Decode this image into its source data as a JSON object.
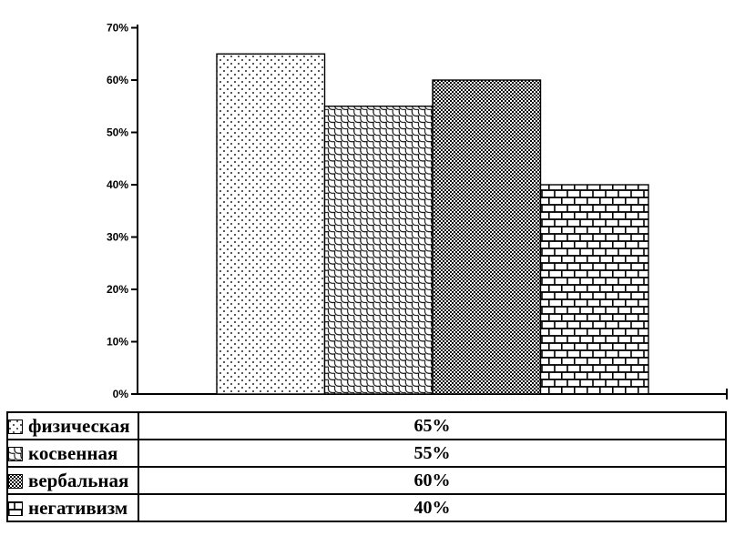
{
  "chart_data": {
    "type": "bar",
    "title": "",
    "xlabel": "",
    "ylabel": "",
    "categories": [
      "физическая",
      "косвенная",
      "вербальная",
      "негативизм"
    ],
    "values": [
      65,
      55,
      60,
      40
    ],
    "value_labels": [
      "65%",
      "55%",
      "60%",
      "40%"
    ],
    "patterns": [
      "dots",
      "scales",
      "dense-checker",
      "brick"
    ],
    "ylim": [
      0,
      70
    ],
    "ytick_step": 10,
    "ytick_labels": [
      "0%",
      "10%",
      "20%",
      "30%",
      "40%",
      "50%",
      "60%",
      "70%"
    ],
    "grid": false,
    "legend_position": "bottom-table",
    "colors": {
      "foreground": "#000000",
      "background": "#ffffff",
      "bar_fill": "#ffffff",
      "bar_stroke": "#000000"
    }
  },
  "legend_table": {
    "rows": [
      {
        "label": "физическая",
        "value": "65%",
        "swatch": "dots"
      },
      {
        "label": "косвенная",
        "value": "55%",
        "swatch": "scales"
      },
      {
        "label": "вербальная",
        "value": "60%",
        "swatch": "dense-checker"
      },
      {
        "label": "негативизм",
        "value": "40%",
        "swatch": "brick"
      }
    ]
  }
}
